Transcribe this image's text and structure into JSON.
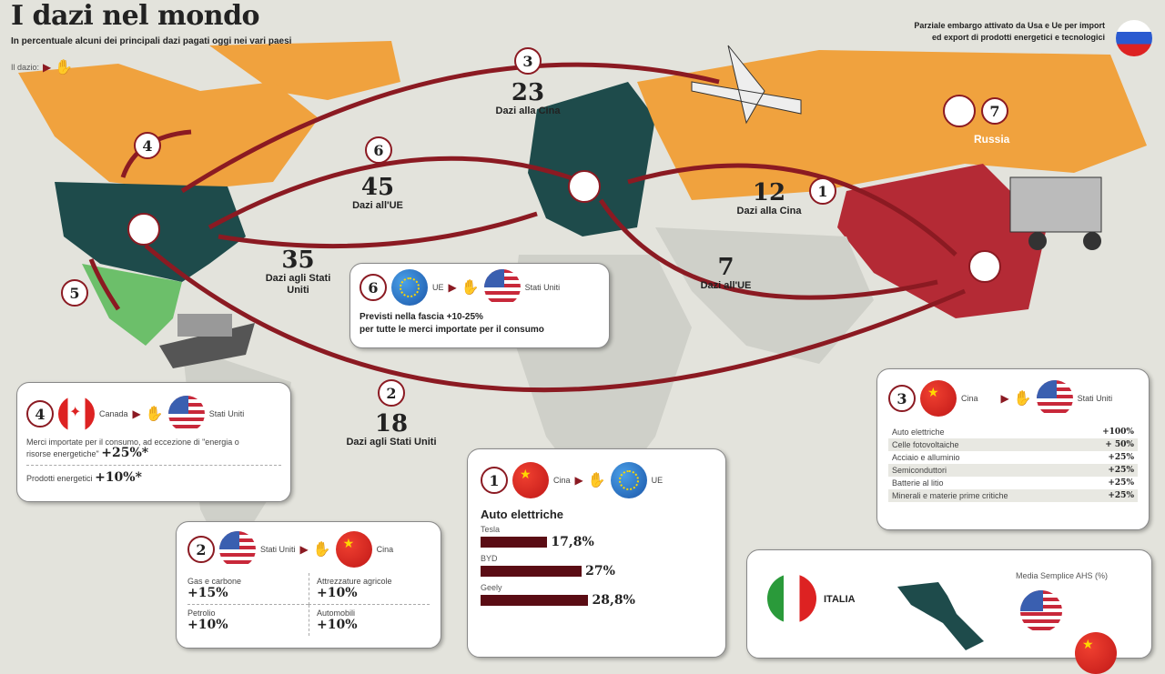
{
  "title": "I dazi nel mondo",
  "subtitle": "In percentuale alcuni dei principali dazi pagati oggi nei vari paesi",
  "legend_label": "Il dazio:",
  "embargo_note": "Parziale embargo attivato da Usa e Ue per import ed export di prodotti energetici e tecnologici",
  "russia_label": "Russia",
  "colors": {
    "arrow": "#8b1a22",
    "usa_eu": "#1e4b4b",
    "canada_russia": "#f0a23e",
    "china": "#b42a35",
    "mexico": "#6cbf6a",
    "land": "#cfd0c9"
  },
  "map_labels": [
    {
      "num": "3",
      "value": "23",
      "text": "Dazi alla Cina"
    },
    {
      "num": "6",
      "value": "45",
      "text": "Dazi all'UE"
    },
    {
      "num": "",
      "value": "35",
      "text": "Dazi agli Stati Uniti"
    },
    {
      "num": "1",
      "value": "12",
      "text": "Dazi alla Cina"
    },
    {
      "num": "",
      "value": "7",
      "text": "Dazi all'UE"
    },
    {
      "num": "2",
      "value": "18",
      "text": "Dazi agli Stati Uniti"
    }
  ],
  "markers": [
    "4",
    "5",
    "7"
  ],
  "box6": {
    "num": "6",
    "from": "UE",
    "to": "Stati Uniti",
    "line1": "Previsti nella fascia +10-25%",
    "line2": "per tutte le merci importate per il consumo"
  },
  "box4": {
    "num": "4",
    "from": "Canada",
    "to": "Stati Uniti",
    "text": "Merci importate per il consumo, ad eccezione di \"energia o risorse energetiche\"",
    "value": "+25%*",
    "text2": "Prodotti energetici",
    "value2": "+10%*"
  },
  "box3": {
    "num": "3",
    "from": "Cina",
    "to": "Stati Uniti",
    "rows": [
      {
        "label": "Auto elettriche",
        "value": "+100%"
      },
      {
        "label": "Celle fotovoltaiche",
        "value": "+ 50%"
      },
      {
        "label": "Acciaio e alluminio",
        "value": "+25%"
      },
      {
        "label": "Semiconduttori",
        "value": "+25%"
      },
      {
        "label": "Batterie al litio",
        "value": "+25%"
      },
      {
        "label": "Minerali e materie prime critiche",
        "value": "+25%"
      }
    ]
  },
  "box2": {
    "num": "2",
    "from": "Stati Uniti",
    "to": "Cina",
    "items": [
      {
        "label": "Gas e carbone",
        "value": "+15%"
      },
      {
        "label": "Attrezzature agricole",
        "value": "+10%"
      },
      {
        "label": "Petrolio",
        "value": "+10%"
      },
      {
        "label": "Automobili",
        "value": "+10%"
      }
    ]
  },
  "box1": {
    "num": "1",
    "from": "Cina",
    "to": "UE",
    "heading": "Auto elettriche",
    "bars": [
      {
        "label": "Tesla",
        "value": 17.8,
        "text": "17,8%"
      },
      {
        "label": "BYD",
        "value": 27,
        "text": "27%"
      },
      {
        "label": "Geely",
        "value": 28.8,
        "text": "28,8%"
      }
    ]
  },
  "italy": {
    "label": "ITALIA",
    "metric": "Media Semplice AHS (%)"
  }
}
